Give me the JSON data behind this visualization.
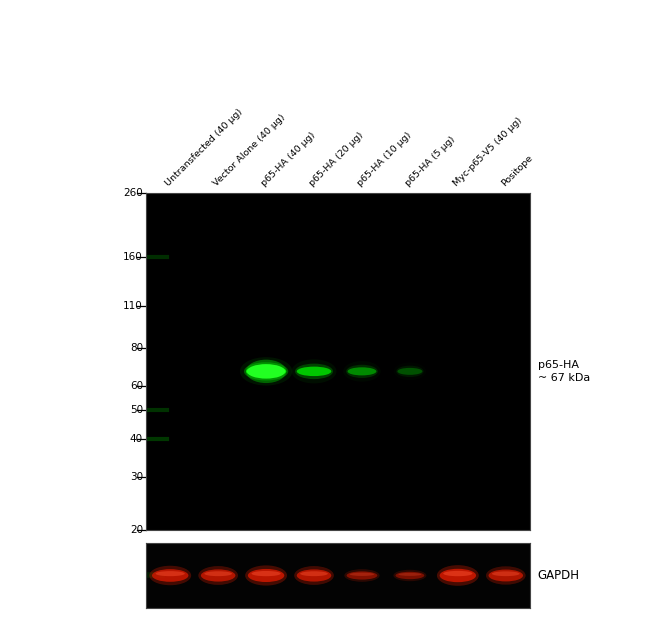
{
  "lane_labels": [
    "Untransfected (40 μg)",
    "Vector Alone (40 μg)",
    "p65-HA (40 μg)",
    "p65-HA (20 μg)",
    "p65-HA (10 μg)",
    "p65-HA (5 μg)",
    "Myc-p65-V5 (40 μg)",
    "Positope"
  ],
  "mw_markers": [
    260,
    160,
    110,
    80,
    60,
    50,
    40,
    30,
    20
  ],
  "figure_bg": "#ffffff",
  "right_label_main": "p65-HA\n~ 67 kDa",
  "right_label_gapdh": "GAPDH",
  "n_lanes": 8,
  "band_mw": 67,
  "green_band_intensities": [
    0,
    0,
    1.0,
    0.7,
    0.45,
    0.25,
    0,
    0
  ],
  "gapdh_intensities": [
    0.85,
    0.82,
    0.88,
    0.82,
    0.55,
    0.5,
    0.9,
    0.8
  ],
  "mw_glow": [
    160,
    50,
    40
  ],
  "mw_log_min": 2.996,
  "mw_log_max": 5.565
}
